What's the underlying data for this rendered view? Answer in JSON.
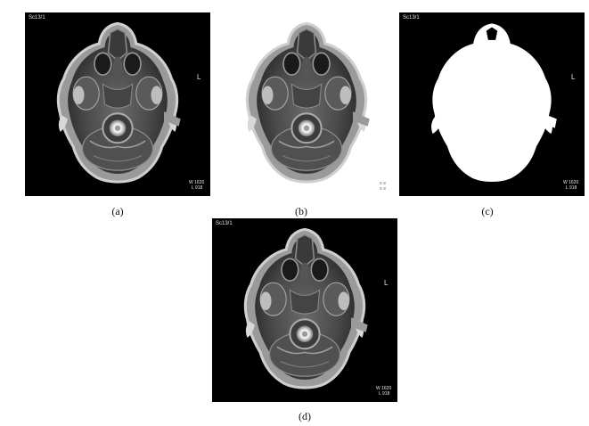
{
  "panels": {
    "a": {
      "caption": "(a)",
      "series": "Sc13/1",
      "orientation": "L",
      "window": "W 1620",
      "level": "L 918"
    },
    "b": {
      "caption": "(b)",
      "corner_marks": "≡ ≡\n≡ ≡"
    },
    "c": {
      "caption": "(c)",
      "series": "Sc13/1",
      "orientation": "L",
      "window": "W 1620",
      "level": "L 918"
    },
    "d": {
      "caption": "(d)",
      "series": "Sc13/1",
      "orientation": "L",
      "window": "W 1620",
      "level": "L 918"
    }
  },
  "colors": {
    "background": "#000000",
    "mask": "#ffffff",
    "caption_text": "#111111"
  }
}
